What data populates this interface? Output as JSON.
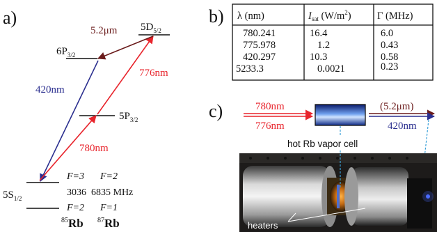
{
  "panels": {
    "a": "a)",
    "b": "b)",
    "c": "c)"
  },
  "levels": {
    "d52_main": "5D",
    "d52_sub": "5/2",
    "p32_main": "6P",
    "p32_sub": "3/2",
    "p5_main": "5P",
    "p5_sub": "3/2",
    "s12_main": "5S",
    "s12_sub": "1/2"
  },
  "transitions": {
    "t420": "420nm",
    "t776": "776nm",
    "t780": "780nm",
    "t52": "5.2μm"
  },
  "hyperfine": {
    "f3": "F=3",
    "f2a": "F=2",
    "f2b": "F=2",
    "f1": "F=1",
    "splits": "3036  6835 MHz",
    "rb85_mass": "85",
    "rb85": "Rb",
    "rb87_mass": "87",
    "rb87": "Rb"
  },
  "table": {
    "headers": [
      "λ (nm)",
      "I",
      "sat",
      " (W/m",
      "2",
      ")",
      "Γ (MHz)"
    ],
    "rows": [
      [
        "780.241",
        "16.4",
        "6.0"
      ],
      [
        "775.978",
        "1.2",
        "0.43"
      ],
      [
        "420.297",
        "10.3",
        "0.58"
      ],
      [
        "5233.3",
        "0.0021",
        "0.23"
      ]
    ]
  },
  "setup": {
    "in1": "780nm",
    "in2": "776nm",
    "out1": "(5.2μm)",
    "out2": "420nm",
    "cell_label": "hot Rb vapor cell",
    "heaters": "heaters"
  },
  "colors": {
    "blue": "#2b2f8f",
    "red": "#e8242c",
    "brown": "#6b1c1c",
    "photo_bg": "#1d1b1a"
  }
}
